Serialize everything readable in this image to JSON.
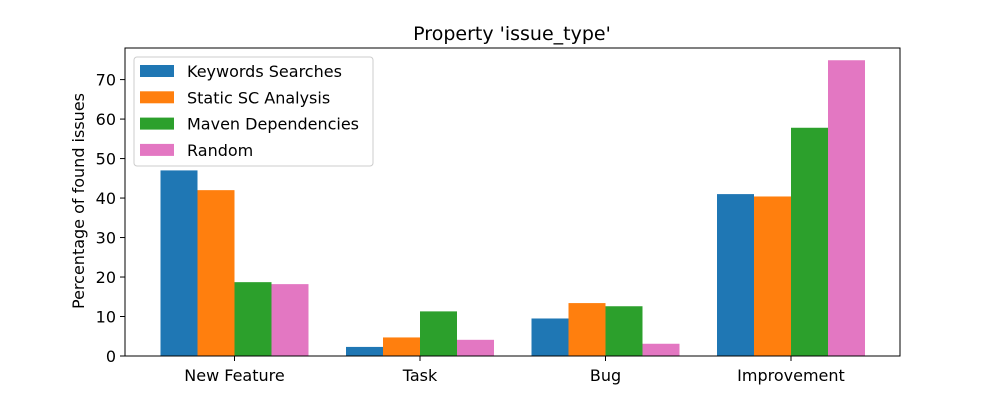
{
  "chart_data": {
    "type": "bar",
    "title": "Property 'issue_type'",
    "xlabel": "",
    "ylabel": "Percentage of found issues",
    "categories": [
      "New Feature",
      "Task",
      "Bug",
      "Improvement"
    ],
    "ylim": [
      0,
      78
    ],
    "yticks": [
      0,
      10,
      20,
      30,
      40,
      50,
      60,
      70
    ],
    "grid": false,
    "legend_position": "top-left",
    "series": [
      {
        "name": "Keywords Searches",
        "color": "#1f77b4",
        "values": [
          47.0,
          2.3,
          9.5,
          41.0
        ]
      },
      {
        "name": "Static SC Analysis",
        "color": "#ff7f0e",
        "values": [
          42.0,
          4.7,
          13.4,
          40.4
        ]
      },
      {
        "name": "Maven Dependencies",
        "color": "#2ca02c",
        "values": [
          18.7,
          11.3,
          12.6,
          57.8
        ]
      },
      {
        "name": "Random",
        "color": "#e377c2",
        "values": [
          18.2,
          4.1,
          3.1,
          74.9
        ]
      }
    ]
  }
}
